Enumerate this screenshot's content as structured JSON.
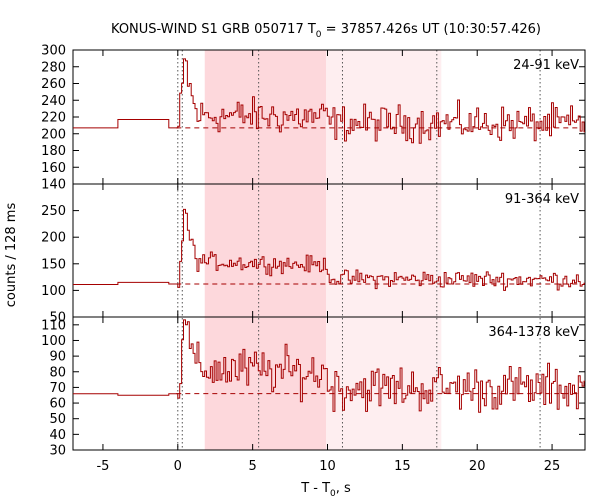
{
  "chart_data": {
    "type": "line",
    "title": "KONUS-WIND S1 GRB 050717 T",
    "title_sub": "0",
    "title_rest": " = 37857.426s UT (10:30:57.426)",
    "xlabel": "T - T",
    "xlabel_sub": "0",
    "xlabel_rest": ", s",
    "ylabel": "counts / 128 ms",
    "xlim": [
      -7,
      27.2
    ],
    "xticks": [
      "-5",
      "0",
      "5",
      "10",
      "15",
      "20",
      "25"
    ],
    "xtick_values": [
      -5,
      0,
      5,
      10,
      15,
      20,
      25
    ],
    "line_color": "#a50000",
    "shade_strong": "#fdd8dc",
    "shade_light": "#feeef0",
    "shaded_intervals": [
      {
        "from": 1.8,
        "to": 9.9,
        "style": "strong"
      },
      {
        "from": 9.9,
        "to": 17.6,
        "style": "light"
      }
    ],
    "vertical_markers": [
      0.0,
      0.3,
      5.4,
      11.0,
      17.3,
      24.2
    ],
    "panels": [
      {
        "name": "24-91 keV",
        "label": "24-91 keV",
        "ylim": [
          140,
          300
        ],
        "yticks": [
          "140",
          "160",
          "180",
          "200",
          "220",
          "240",
          "260",
          "280",
          "300"
        ],
        "ytick_values": [
          140,
          160,
          180,
          200,
          220,
          240,
          260,
          280,
          300
        ],
        "background": 207,
        "pre_burst": [
          {
            "from": -7,
            "to": -4,
            "value": 207
          },
          {
            "from": -4,
            "to": -0.6,
            "value": 217
          },
          {
            "from": -0.6,
            "to": 0.0,
            "value": 207
          }
        ],
        "peak": 287,
        "level_bright": 222,
        "level_tail": 213,
        "noise": 13
      },
      {
        "name": "91-364 keV",
        "label": "91-364 keV",
        "ylim": [
          50,
          300
        ],
        "yticks": [
          "50",
          "100",
          "150",
          "200",
          "250"
        ],
        "ytick_values": [
          50,
          100,
          150,
          200,
          250
        ],
        "background": 112,
        "pre_burst": [
          {
            "from": -7,
            "to": -4,
            "value": 111
          },
          {
            "from": -4,
            "to": -0.6,
            "value": 115
          },
          {
            "from": -0.6,
            "to": 0.0,
            "value": 112
          }
        ],
        "peak": 245,
        "level_bright": 155,
        "level_tail": 122,
        "noise": 10
      },
      {
        "name": "364-1378 keV",
        "label": "364-1378 keV",
        "ylim": [
          30,
          115
        ],
        "yticks": [
          "30",
          "40",
          "50",
          "60",
          "70",
          "80",
          "90",
          "100",
          "110"
        ],
        "ytick_values": [
          30,
          40,
          50,
          60,
          70,
          80,
          90,
          100,
          110
        ],
        "background": 66,
        "pre_burst": [
          {
            "from": -7,
            "to": -4,
            "value": 66
          },
          {
            "from": -4,
            "to": -0.6,
            "value": 65
          },
          {
            "from": -0.6,
            "to": 0.0,
            "value": 66
          }
        ],
        "peak": 110,
        "level_bright": 82,
        "level_tail": 70,
        "noise": 9
      }
    ]
  }
}
